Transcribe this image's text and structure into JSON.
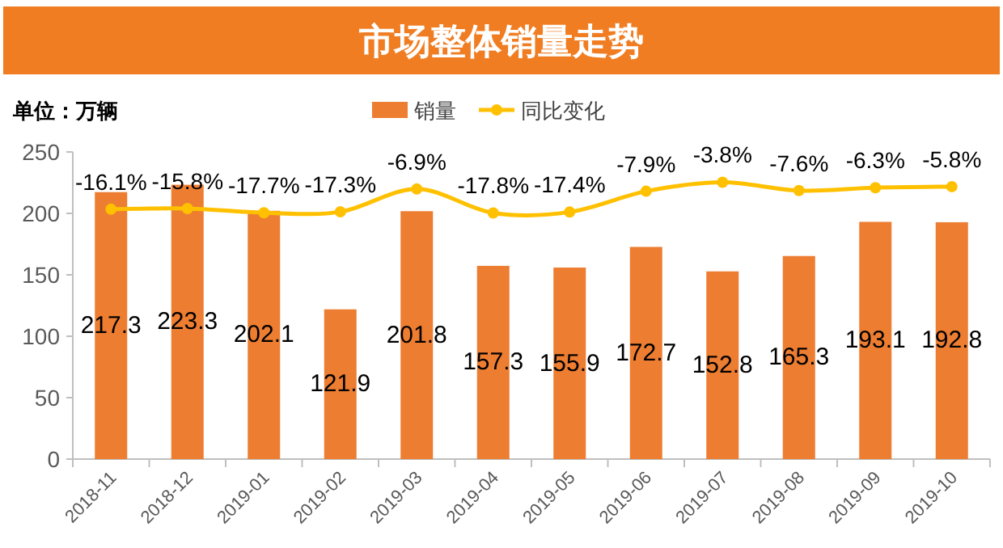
{
  "chart_data": {
    "type": "bar",
    "title": "市场整体销量走势",
    "ylabel": "单位：万辆",
    "categories": [
      "2018-11",
      "2018-12",
      "2019-01",
      "2019-02",
      "2019-03",
      "2019-04",
      "2019-05",
      "2019-06",
      "2019-07",
      "2019-08",
      "2019-09",
      "2019-10"
    ],
    "series": [
      {
        "name": "销量",
        "color": "#ed7d31",
        "values": [
          217.3,
          223.3,
          202.1,
          121.9,
          201.8,
          157.3,
          155.9,
          172.7,
          152.8,
          165.3,
          193.1,
          192.8
        ],
        "value_labels": [
          "217.3",
          "223.3",
          "202.1",
          "121.9",
          "201.8",
          "157.3",
          "155.9",
          "172.7",
          "152.8",
          "165.3",
          "193.1",
          "192.8"
        ]
      },
      {
        "name": "同比变化",
        "type": "line",
        "axis": "y2",
        "color": "#ffc000",
        "marker": "circle",
        "values": [
          -16.1,
          -15.8,
          -17.7,
          -17.3,
          -6.9,
          -17.8,
          -17.4,
          -7.9,
          -3.8,
          -7.6,
          -6.3,
          -5.8
        ],
        "value_labels": [
          "-16.1%",
          "-15.8%",
          "-17.7%",
          "-17.3%",
          "-6.9%",
          "-17.8%",
          "-17.4%",
          "-7.9%",
          "-3.8%",
          "-7.6%",
          "-6.3%",
          "-5.8%"
        ]
      }
    ],
    "ylim": [
      0,
      250
    ],
    "yticks": [
      0,
      50,
      100,
      150,
      200,
      250
    ],
    "y2lim": [
      -130,
      10
    ],
    "tick_labels": "xy",
    "grid": false,
    "legend": "top"
  }
}
